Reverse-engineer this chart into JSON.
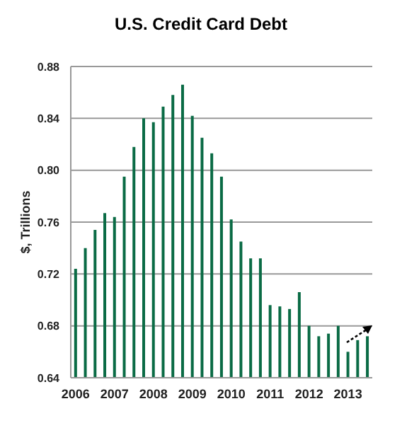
{
  "chart_data": {
    "type": "bar",
    "title": "U.S. Credit Card Debt",
    "ylabel": "$, Trillions",
    "categories": [
      "2006",
      null,
      null,
      null,
      "2007",
      null,
      null,
      null,
      "2008",
      null,
      null,
      null,
      "2009",
      null,
      null,
      null,
      "2010",
      null,
      null,
      null,
      "2011",
      null,
      null,
      null,
      "2012",
      null,
      null,
      null,
      "2013",
      null,
      null
    ],
    "values": [
      0.724,
      0.74,
      0.754,
      0.767,
      0.764,
      0.795,
      0.818,
      0.84,
      0.837,
      0.849,
      0.858,
      0.866,
      0.842,
      0.825,
      0.813,
      0.795,
      0.762,
      0.745,
      0.732,
      0.732,
      0.696,
      0.695,
      0.693,
      0.706,
      0.68,
      0.672,
      0.674,
      0.68,
      0.66,
      0.669,
      0.672
    ],
    "color": "#0a6b45",
    "ylim": [
      0.64,
      0.88
    ],
    "yticks": [
      {
        "value": 0.64,
        "label": "0.64"
      },
      {
        "value": 0.68,
        "label": "0.68"
      },
      {
        "value": 0.72,
        "label": "0.72"
      },
      {
        "value": 0.76,
        "label": "0.76"
      },
      {
        "value": 0.8,
        "label": "0.80"
      },
      {
        "value": 0.84,
        "label": "0.84"
      },
      {
        "value": 0.88,
        "label": "0.88"
      }
    ],
    "grid": "y"
  }
}
